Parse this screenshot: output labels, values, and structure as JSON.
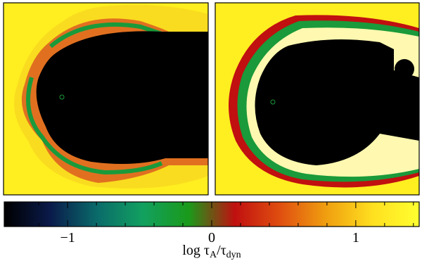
{
  "chart_data": {
    "type": "colorbar",
    "xlabel": [
      "log τ",
      "A",
      "/τ",
      "dyn"
    ],
    "xlim": [
      -1.44,
      1.44
    ],
    "xticks": [
      {
        "value": -1,
        "label": "−1"
      },
      0,
      1
    ],
    "minor_xticks": [
      -1.4,
      -1.2,
      -0.8,
      -0.6,
      -0.4,
      -0.2,
      0.2,
      0.4,
      0.6,
      0.8,
      1.2,
      1.4
    ],
    "colormap": [
      "#000000",
      "#0a1a4a",
      "#0a6a6a",
      "#12a060",
      "#1a9a1a",
      "#c01010",
      "#e05010",
      "#f0a010",
      "#ffe020",
      "#ffff30"
    ]
  }
}
